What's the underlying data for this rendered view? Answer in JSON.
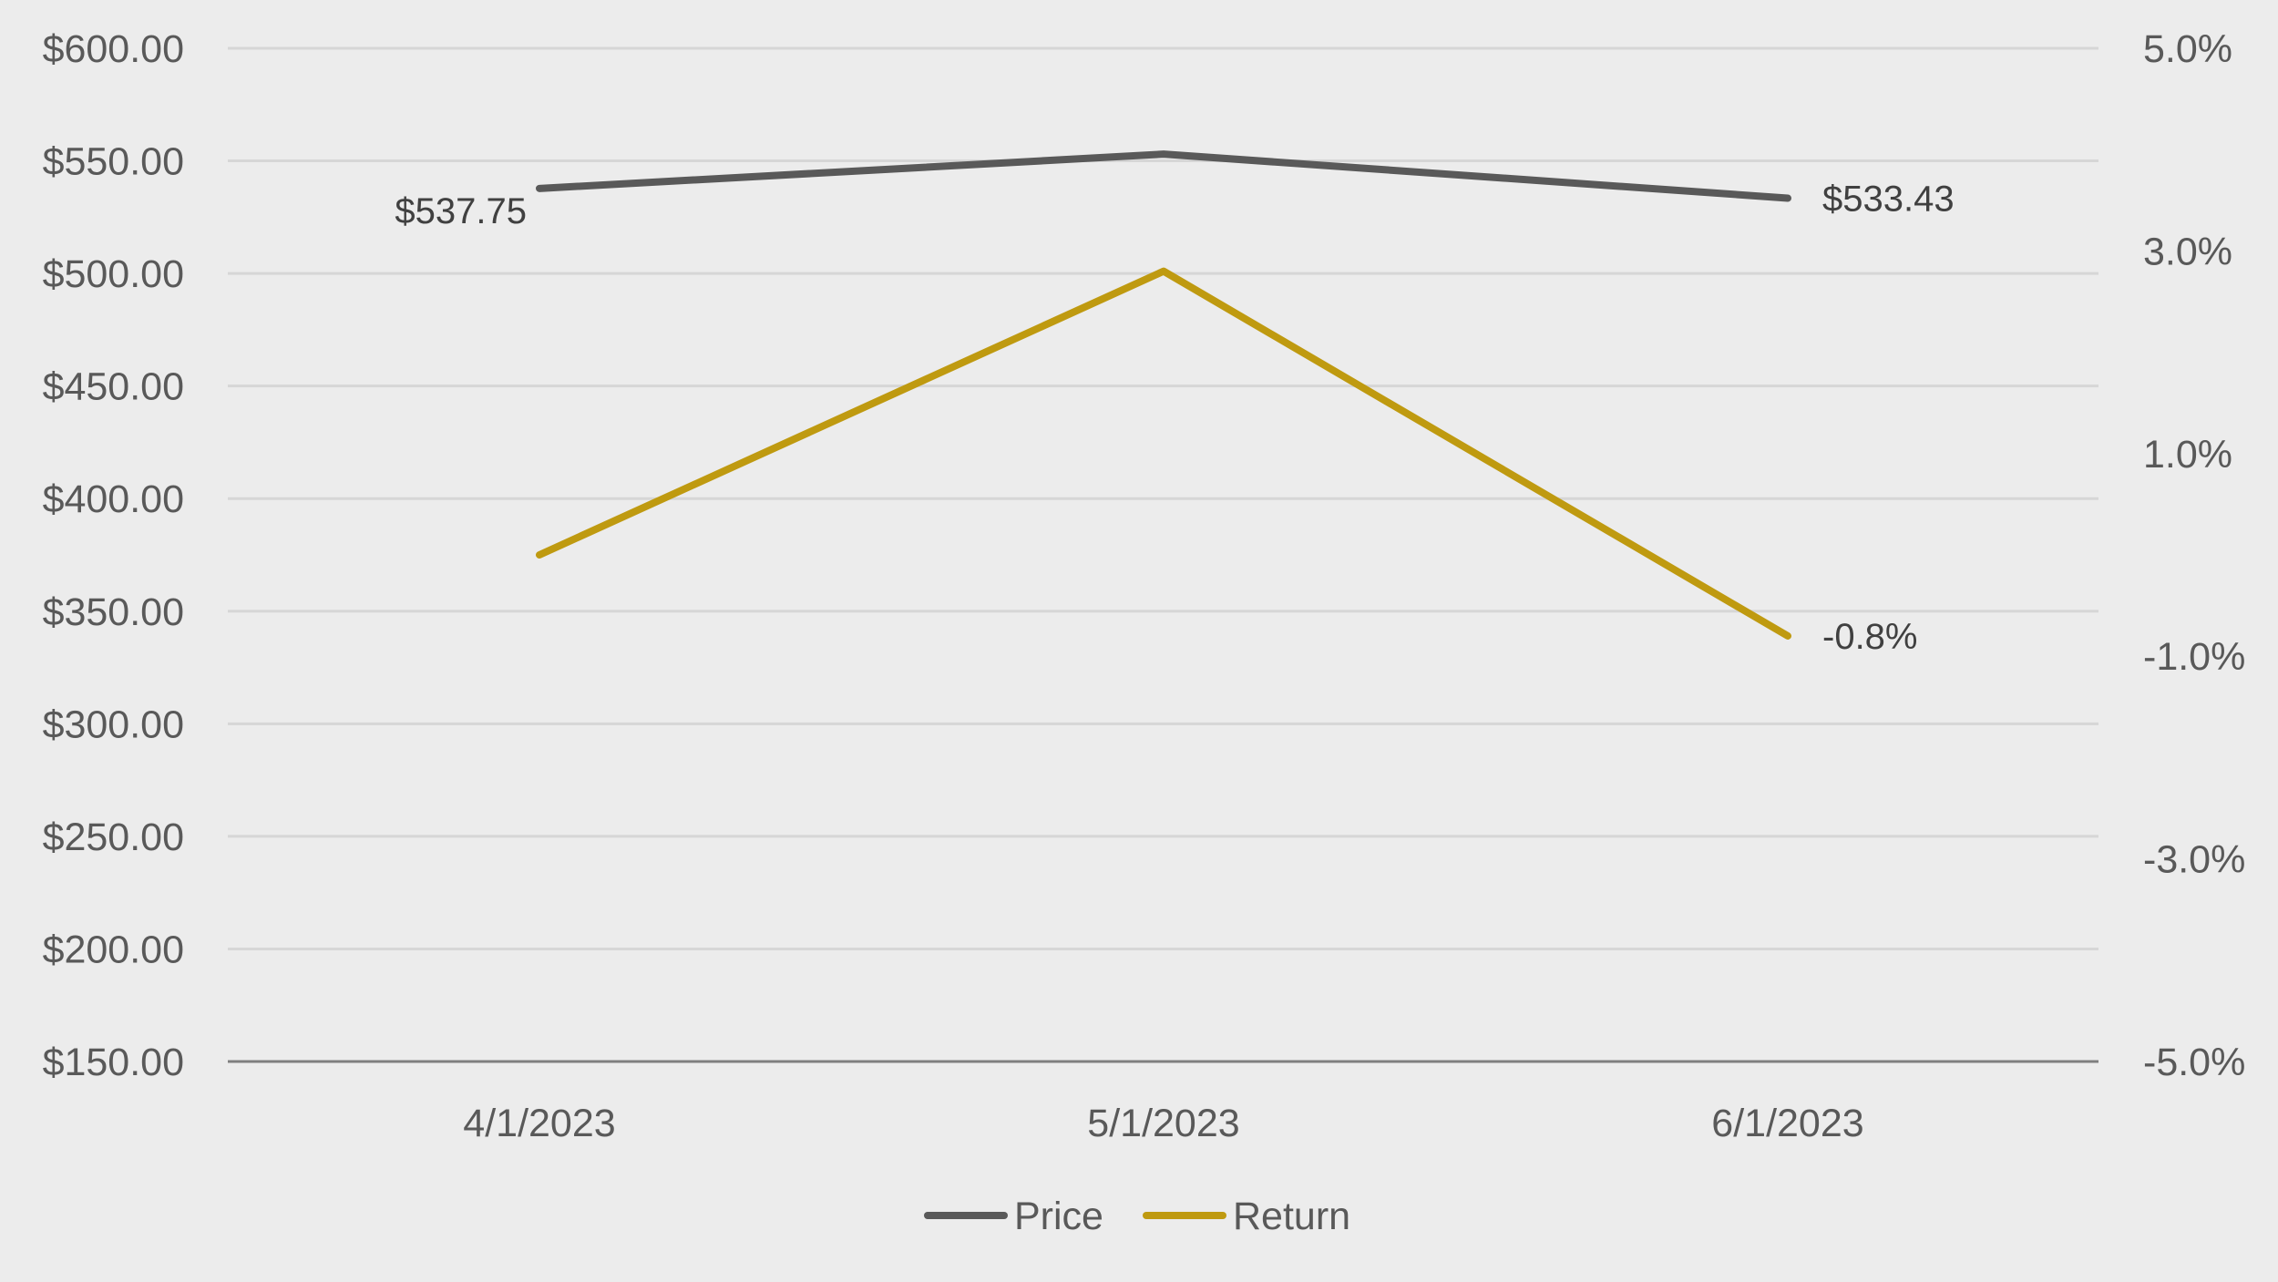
{
  "chart_data": {
    "type": "line",
    "categories": [
      "4/1/2023",
      "5/1/2023",
      "6/1/2023"
    ],
    "series": [
      {
        "name": "Price",
        "axis": "left",
        "color": "#595959",
        "values": [
          537.75,
          553.0,
          533.43
        ]
      },
      {
        "name": "Return",
        "axis": "right",
        "color": "#bf9a10",
        "values": [
          0.0,
          2.8,
          -0.8
        ]
      }
    ],
    "left_axis": {
      "ylim": [
        150,
        600
      ],
      "ticks": [
        600,
        550,
        500,
        450,
        400,
        350,
        300,
        250,
        200,
        150
      ],
      "tick_labels": [
        "$600.00",
        "$550.00",
        "$500.00",
        "$450.00",
        "$400.00",
        "$350.00",
        "$300.00",
        "$250.00",
        "$200.00",
        "$150.00"
      ]
    },
    "right_axis": {
      "ylim": [
        -5,
        5
      ],
      "ticks": [
        5,
        3,
        1,
        -1,
        -3,
        -5
      ],
      "tick_labels": [
        "5.0%",
        "3.0%",
        "1.0%",
        "-1.0%",
        "-3.0%",
        "-5.0%"
      ]
    },
    "data_labels": [
      {
        "series": 0,
        "index": 0,
        "text": "$537.75"
      },
      {
        "series": 0,
        "index": 2,
        "text": "$533.43"
      },
      {
        "series": 1,
        "index": 2,
        "text": "-0.8%"
      }
    ],
    "legend": {
      "position": "bottom",
      "entries": [
        "Price",
        "Return"
      ]
    },
    "grid": true
  }
}
